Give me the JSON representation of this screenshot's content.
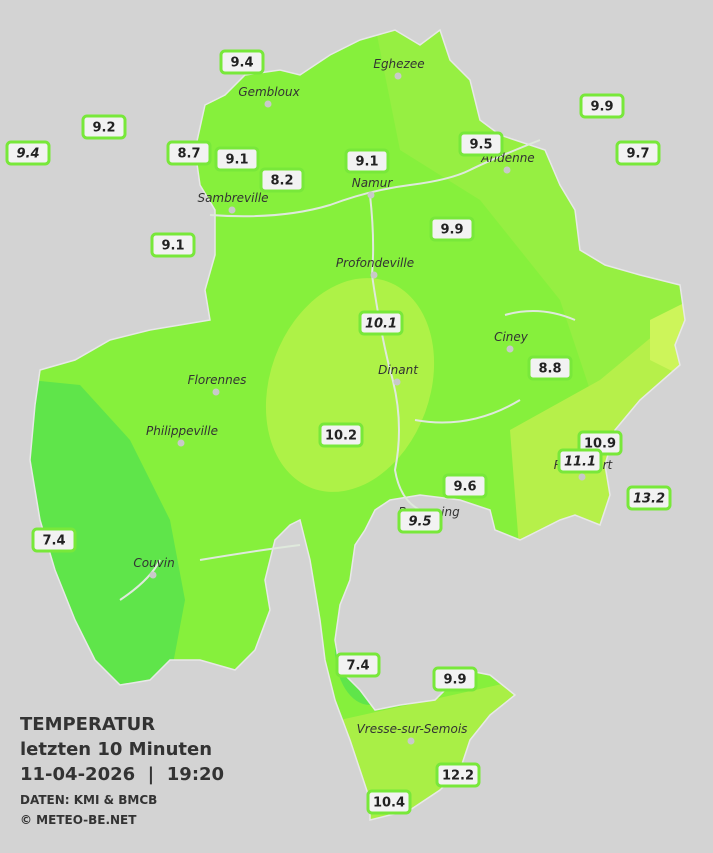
{
  "legend": {
    "title": "TEMPERATUR",
    "period": "letzten 10 Minuten",
    "datetime": "11-04-2026  |  19:20",
    "source": "DATEN: KMI & BMCB",
    "copyright": "© METEO-BE.NET"
  },
  "towns": [
    "Eghezee",
    "Gembloux",
    "Andenne",
    "Namur",
    "Sambreville",
    "Profondeville",
    "Ciney",
    "Dinant",
    "Florennes",
    "Philippeville",
    "Rochefort",
    "Beauraing",
    "Couvin",
    "Vresse-sur-Semois"
  ],
  "stations": [
    9.4,
    9.2,
    9.4,
    8.7,
    9.1,
    8.2,
    9.1,
    9.5,
    9.9,
    9.7,
    9.1,
    9.9,
    10.1,
    8.8,
    10.2,
    10.9,
    11.1,
    13.2,
    9.6,
    9.5,
    7.4,
    7.4,
    9.9,
    12.2,
    10.4
  ]
}
